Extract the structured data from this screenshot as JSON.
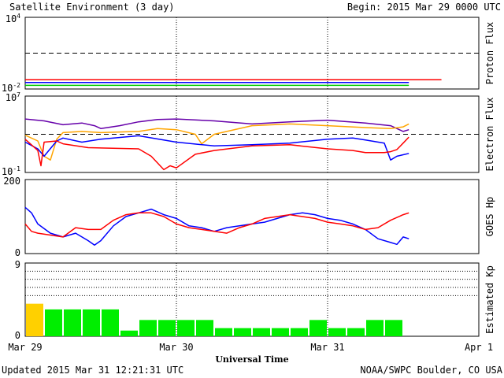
{
  "header": {
    "title": "Satellite Environment (3 day)",
    "begin": "Begin:  2015 Mar 29 0000 UTC"
  },
  "footer": {
    "updated": "Updated 2015 Mar 31 12:21:31 UTC",
    "credit": "NOAA/SWPC Boulder, CO USA",
    "xlabel": "Universal Time"
  },
  "chart_data": [
    {
      "panel": "proton",
      "type": "line",
      "ylabel": "Proton Flux",
      "yscale": "log",
      "ylim": [
        0.01,
        10000
      ],
      "ytick_labels": [
        "10^4",
        "10^-2"
      ],
      "threshold": 10,
      "x_unit": "hours since Mar 29 0000 UTC",
      "xlim": [
        0,
        72
      ],
      "series": [
        {
          "color": "#ff0000",
          "x": [
            0,
            6,
            12,
            18,
            24,
            30,
            36,
            42,
            48,
            54,
            60,
            66,
            60.9
          ],
          "y": [
            0.06,
            0.06,
            0.06,
            0.06,
            0.06,
            0.06,
            0.06,
            0.06,
            0.06,
            0.06,
            0.06,
            0.06,
            0.06
          ]
        },
        {
          "color": "#0000ff",
          "x": [
            0,
            6,
            12,
            18,
            24,
            30,
            36,
            42,
            48,
            54,
            60.9
          ],
          "y": [
            0.035,
            0.035,
            0.035,
            0.035,
            0.035,
            0.035,
            0.035,
            0.035,
            0.035,
            0.035,
            0.035
          ]
        },
        {
          "color": "#00cc00",
          "x": [
            0,
            6,
            12,
            18,
            24,
            30,
            36,
            42,
            48,
            54,
            60.9
          ],
          "y": [
            0.02,
            0.02,
            0.02,
            0.02,
            0.02,
            0.02,
            0.02,
            0.02,
            0.02,
            0.02,
            0.02
          ]
        }
      ]
    },
    {
      "panel": "electron",
      "type": "line",
      "ylabel": "Electron Flux",
      "yscale": "log",
      "ylim": [
        0.1,
        10000000
      ],
      "ytick_labels": [
        "10^7",
        "10^-1"
      ],
      "threshold": 1000,
      "xlim": [
        0,
        72
      ],
      "series": [
        {
          "color": "#6600aa",
          "x": [
            0,
            3,
            6,
            9,
            11,
            12,
            15,
            18,
            21,
            24,
            30,
            36,
            42,
            48,
            54,
            58,
            60,
            60.9
          ],
          "y": [
            40000,
            25000,
            10000,
            15000,
            8000,
            4000,
            8000,
            20000,
            35000,
            40000,
            25000,
            12000,
            20000,
            30000,
            15000,
            8000,
            2000,
            3000
          ]
        },
        {
          "color": "#ffa500",
          "x": [
            0,
            2,
            3,
            4,
            5,
            6,
            9,
            12,
            18,
            21,
            24,
            27,
            28,
            30,
            36,
            42,
            48,
            54,
            58,
            60,
            60.9
          ],
          "y": [
            800,
            200,
            5,
            2,
            300,
            1500,
            2000,
            1500,
            2000,
            4000,
            3000,
            1000,
            100,
            1000,
            8000,
            12000,
            8000,
            5000,
            4000,
            6000,
            12000
          ]
        },
        {
          "color": "#0000ff",
          "x": [
            0,
            2,
            3,
            5,
            6,
            9,
            12,
            18,
            24,
            30,
            36,
            42,
            48,
            52,
            54,
            57,
            58,
            59,
            60.9
          ],
          "y": [
            150,
            30,
            5,
            200,
            400,
            150,
            300,
            700,
            150,
            60,
            80,
            120,
            300,
            400,
            250,
            120,
            2,
            5,
            10
          ]
        },
        {
          "color": "#ff0000",
          "x": [
            0,
            2,
            2.5,
            3,
            5,
            6,
            10,
            18,
            20,
            22,
            23,
            24,
            27,
            30,
            36,
            42,
            48,
            52,
            54,
            57,
            58,
            59,
            60,
            60.9
          ],
          "y": [
            300,
            20,
            0.5,
            150,
            200,
            100,
            40,
            30,
            5,
            0.2,
            0.5,
            0.3,
            8,
            20,
            60,
            80,
            30,
            20,
            12,
            12,
            15,
            25,
            120,
            500
          ]
        }
      ]
    },
    {
      "panel": "goes-hp",
      "type": "line",
      "ylabel": "GOES Hp",
      "ylim": [
        0,
        200
      ],
      "ytick_labels": [
        "200",
        "0"
      ],
      "xlim": [
        0,
        72
      ],
      "series": [
        {
          "color": "#0000ff",
          "x": [
            0,
            1,
            2,
            4,
            6,
            8,
            10,
            11,
            12,
            14,
            16,
            18,
            20,
            22,
            24,
            26,
            28,
            30,
            32,
            34,
            36,
            38,
            40,
            42,
            44,
            46,
            48,
            50,
            52,
            54,
            56,
            58,
            59,
            60,
            60.9
          ],
          "y": [
            125,
            110,
            80,
            55,
            45,
            55,
            35,
            23,
            35,
            75,
            100,
            110,
            120,
            105,
            95,
            75,
            70,
            60,
            70,
            75,
            80,
            85,
            95,
            105,
            110,
            105,
            95,
            90,
            80,
            65,
            40,
            30,
            25,
            45,
            40
          ]
        },
        {
          "color": "#ff0000",
          "x": [
            0,
            1,
            2,
            4,
            6,
            8,
            10,
            12,
            14,
            16,
            18,
            20,
            22,
            24,
            26,
            28,
            30,
            32,
            34,
            36,
            38,
            40,
            42,
            44,
            46,
            48,
            50,
            52,
            54,
            56,
            58,
            60,
            60.9
          ],
          "y": [
            80,
            60,
            55,
            50,
            45,
            70,
            65,
            65,
            90,
            105,
            110,
            110,
            100,
            80,
            70,
            65,
            60,
            55,
            70,
            80,
            95,
            100,
            105,
            100,
            95,
            85,
            80,
            75,
            65,
            70,
            90,
            105,
            110
          ]
        }
      ]
    },
    {
      "panel": "kp",
      "type": "bar",
      "ylabel": "Estimated Kp",
      "ylim": [
        0,
        9
      ],
      "ytick_labels": [
        "9",
        "0"
      ],
      "xlim": [
        0,
        72
      ],
      "bar_hours": 3,
      "values": [
        4,
        3.3,
        3.3,
        3.3,
        3.3,
        0.7,
        2,
        2,
        2,
        2,
        1,
        1,
        1,
        1,
        1,
        2,
        1,
        1,
        2,
        2
      ],
      "colors": [
        "#ffd000",
        "#00ee00",
        "#00ee00",
        "#00ee00",
        "#00ee00",
        "#00ee00",
        "#00ee00",
        "#00ee00",
        "#00ee00",
        "#00ee00",
        "#00ee00",
        "#00ee00",
        "#00ee00",
        "#00ee00",
        "#00ee00",
        "#00ee00",
        "#00ee00",
        "#00ee00",
        "#00ee00",
        "#00ee00"
      ]
    }
  ],
  "x_axis": {
    "tick_labels": [
      "Mar 29",
      "Mar 30",
      "Mar 31",
      "Apr 1"
    ],
    "tick_hours": [
      0,
      24,
      48,
      72
    ]
  }
}
